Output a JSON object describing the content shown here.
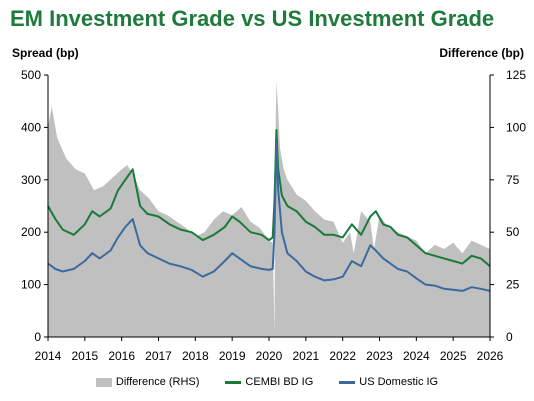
{
  "title": "EM Investment Grade vs US Investment Grade",
  "colors": {
    "title": "#1f7a3d",
    "difference": "#c0c0c0",
    "cembi": "#1a7a3a",
    "us": "#3c6a9f"
  },
  "chart_data": {
    "type": "line",
    "title": "EM Investment Grade vs US Investment Grade",
    "ylabel": "Spread (bp)",
    "y2label": "Difference (bp)",
    "ylim": [
      0,
      500
    ],
    "y2lim": [
      0,
      125
    ],
    "yticks": [
      "0",
      "100",
      "200",
      "300",
      "400",
      "500"
    ],
    "y2ticks": [
      "0",
      "25",
      "50",
      "75",
      "100",
      "125"
    ],
    "xlim": [
      2014,
      2026
    ],
    "xticks": [
      "2014",
      "2015",
      "2016",
      "2017",
      "2018",
      "2019",
      "2020",
      "2021",
      "2022",
      "2023",
      "2024",
      "2025",
      "2026"
    ],
    "legend": "bottom",
    "series": [
      {
        "name": "Difference (RHS)",
        "kind": "area",
        "axis": "right",
        "x": [
          2014.0,
          2014.1,
          2014.25,
          2014.5,
          2014.75,
          2015.0,
          2015.25,
          2015.5,
          2015.75,
          2016.0,
          2016.15,
          2016.3,
          2016.5,
          2016.75,
          2017.0,
          2017.25,
          2017.5,
          2017.75,
          2018.0,
          2018.25,
          2018.5,
          2018.75,
          2019.0,
          2019.25,
          2019.5,
          2019.75,
          2020.0,
          2020.1,
          2020.15,
          2020.17,
          2020.2,
          2020.25,
          2020.3,
          2020.4,
          2020.5,
          2020.75,
          2021.0,
          2021.25,
          2021.5,
          2021.75,
          2022.0,
          2022.2,
          2022.3,
          2022.5,
          2022.75,
          2022.85,
          2023.0,
          2023.25,
          2023.5,
          2023.75,
          2024.0,
          2024.25,
          2024.5,
          2024.75,
          2025.0,
          2025.25,
          2025.5,
          2025.75,
          2026.0
        ],
        "values": [
          100,
          110,
          95,
          85,
          80,
          78,
          70,
          72,
          76,
          80,
          82,
          78,
          70,
          66,
          60,
          58,
          55,
          52,
          48,
          50,
          56,
          60,
          58,
          62,
          55,
          52,
          46,
          45,
          2,
          90,
          122,
          108,
          90,
          80,
          75,
          68,
          65,
          60,
          56,
          55,
          45,
          50,
          40,
          60,
          55,
          42,
          58,
          52,
          50,
          48,
          46,
          40,
          44,
          42,
          45,
          40,
          46,
          44,
          42
        ]
      },
      {
        "name": "CEMBI BD IG",
        "kind": "line",
        "axis": "left",
        "x": [
          2014.0,
          2014.2,
          2014.4,
          2014.7,
          2015.0,
          2015.2,
          2015.4,
          2015.7,
          2015.9,
          2016.1,
          2016.3,
          2016.5,
          2016.7,
          2017.0,
          2017.3,
          2017.6,
          2017.9,
          2018.2,
          2018.5,
          2018.8,
          2019.0,
          2019.2,
          2019.5,
          2019.8,
          2020.0,
          2020.1,
          2020.15,
          2020.2,
          2020.25,
          2020.35,
          2020.5,
          2020.75,
          2021.0,
          2021.25,
          2021.5,
          2021.75,
          2022.0,
          2022.25,
          2022.5,
          2022.75,
          2022.9,
          2023.1,
          2023.3,
          2023.5,
          2023.75,
          2024.0,
          2024.25,
          2024.5,
          2024.75,
          2025.0,
          2025.25,
          2025.5,
          2025.75,
          2026.0
        ],
        "values": [
          250,
          225,
          205,
          195,
          215,
          240,
          230,
          245,
          280,
          300,
          320,
          250,
          235,
          230,
          215,
          205,
          200,
          185,
          195,
          210,
          230,
          220,
          200,
          195,
          185,
          190,
          260,
          395,
          320,
          270,
          250,
          240,
          220,
          210,
          195,
          195,
          190,
          215,
          195,
          230,
          240,
          215,
          210,
          195,
          190,
          175,
          160,
          155,
          150,
          145,
          140,
          155,
          150,
          135
        ]
      },
      {
        "name": "US Domestic IG",
        "kind": "line",
        "axis": "left",
        "x": [
          2014.0,
          2014.2,
          2014.4,
          2014.7,
          2015.0,
          2015.2,
          2015.4,
          2015.7,
          2015.9,
          2016.1,
          2016.3,
          2016.5,
          2016.7,
          2017.0,
          2017.3,
          2017.6,
          2017.9,
          2018.2,
          2018.5,
          2018.8,
          2019.0,
          2019.2,
          2019.5,
          2019.8,
          2020.0,
          2020.1,
          2020.15,
          2020.2,
          2020.25,
          2020.35,
          2020.5,
          2020.75,
          2021.0,
          2021.25,
          2021.5,
          2021.75,
          2022.0,
          2022.25,
          2022.5,
          2022.75,
          2022.9,
          2023.1,
          2023.3,
          2023.5,
          2023.75,
          2024.0,
          2024.25,
          2024.5,
          2024.75,
          2025.0,
          2025.25,
          2025.5,
          2025.75,
          2026.0
        ],
        "values": [
          140,
          130,
          125,
          130,
          145,
          160,
          150,
          165,
          190,
          210,
          225,
          175,
          160,
          150,
          140,
          135,
          128,
          115,
          125,
          145,
          160,
          150,
          135,
          130,
          128,
          130,
          200,
          370,
          280,
          200,
          160,
          145,
          125,
          115,
          108,
          110,
          115,
          145,
          135,
          175,
          165,
          150,
          140,
          130,
          125,
          112,
          100,
          98,
          92,
          90,
          88,
          95,
          92,
          88
        ]
      }
    ]
  }
}
